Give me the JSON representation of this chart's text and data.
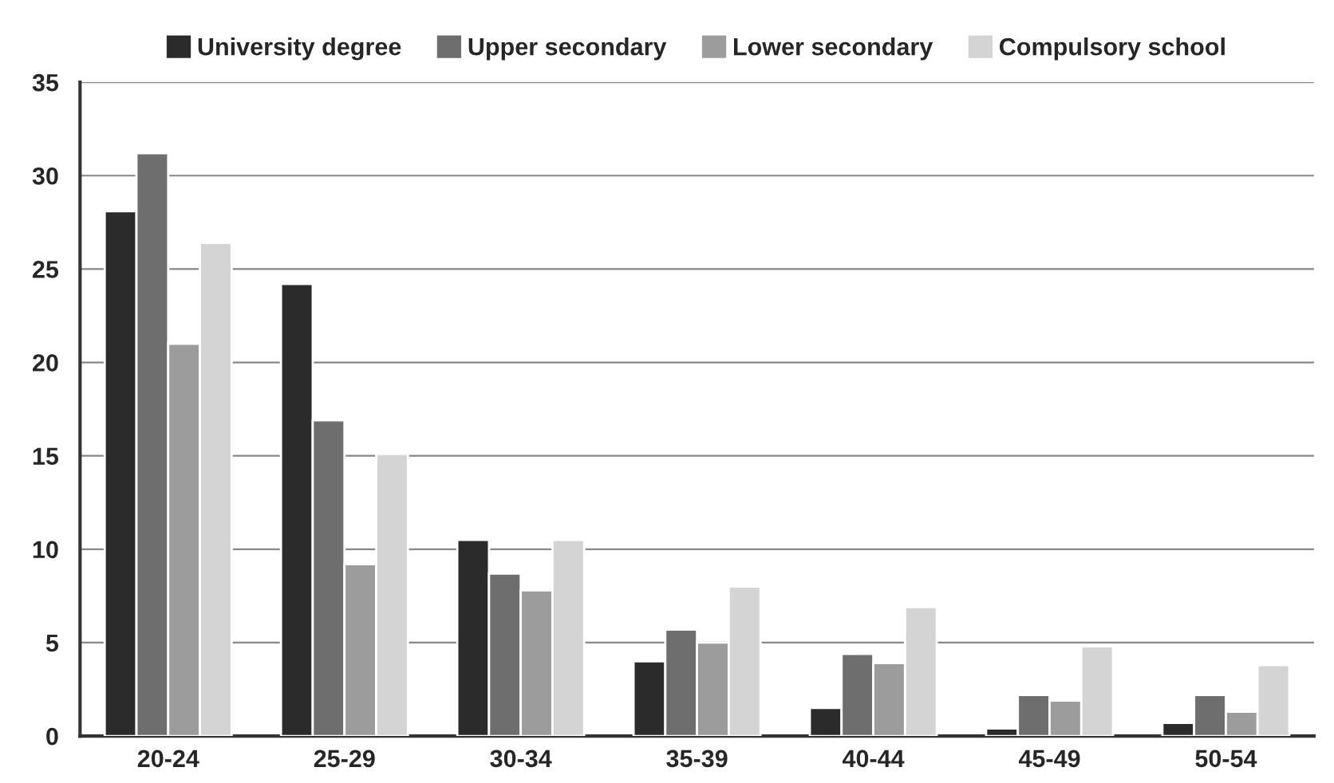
{
  "chart_data": {
    "type": "bar",
    "categories": [
      "20-24",
      "25-29",
      "30-34",
      "35-39",
      "40-44",
      "45-49",
      "50-54"
    ],
    "series": [
      {
        "name": "University degree",
        "color": "#2b2b2b",
        "values": [
          28.1,
          24.2,
          10.5,
          4.0,
          1.5,
          0.4,
          0.7
        ]
      },
      {
        "name": "Upper secondary",
        "color": "#6e6e6e",
        "values": [
          31.2,
          16.9,
          8.7,
          5.7,
          4.4,
          2.2,
          2.2
        ]
      },
      {
        "name": "Lower secondary",
        "color": "#9c9c9c",
        "values": [
          21.0,
          9.2,
          7.8,
          5.0,
          3.9,
          1.9,
          1.3
        ]
      },
      {
        "name": "Compulsory school",
        "color": "#d4d4d4",
        "values": [
          26.4,
          15.1,
          10.5,
          8.0,
          6.9,
          4.8,
          3.8
        ]
      }
    ],
    "ylim": [
      0,
      35
    ],
    "yticks": [
      0,
      5,
      10,
      15,
      20,
      25,
      30,
      35
    ],
    "grid": "y",
    "legend": "top"
  }
}
